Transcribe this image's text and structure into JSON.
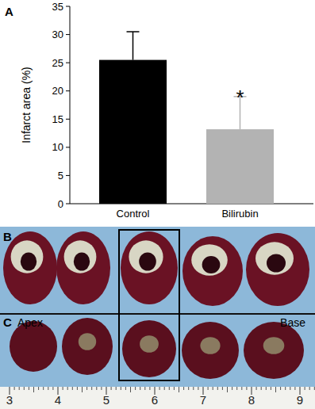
{
  "chart_data": {
    "type": "bar",
    "y_label": "Infarct area (%)",
    "categories": [
      "Control",
      "Bilirubin"
    ],
    "values": [
      25.5,
      13.2
    ],
    "errors": [
      5.0,
      5.8
    ],
    "colors": [
      "#000000",
      "#b3b3b3"
    ],
    "ylim": [
      0,
      35
    ],
    "yticks": [
      0,
      5,
      10,
      15,
      20,
      25,
      30,
      35
    ],
    "grid": false,
    "annotations": [
      {
        "text": "*",
        "category_index": 1
      }
    ]
  },
  "figure": {
    "panel_labels": [
      "A",
      "B",
      "C"
    ],
    "apex_label": "Apex",
    "base_label": "Base",
    "ruler": [
      3,
      4,
      5,
      6,
      7,
      8,
      9
    ]
  }
}
